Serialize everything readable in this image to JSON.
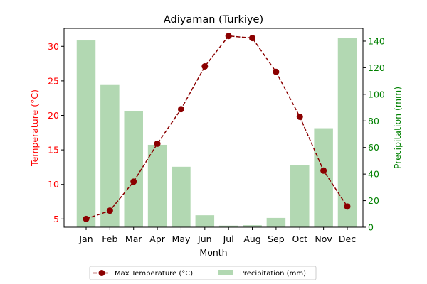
{
  "chart_data": {
    "type": "bar+line",
    "title": "Adiyaman (Turkiye)",
    "xlabel": "Month",
    "categories": [
      "Jan",
      "Feb",
      "Mar",
      "Apr",
      "May",
      "Jun",
      "Jul",
      "Aug",
      "Sep",
      "Oct",
      "Nov",
      "Dec"
    ],
    "temperature": {
      "name": "Max Temperature (°C)",
      "axis_label": "Temperature (°C)",
      "values": [
        5.0,
        6.2,
        10.4,
        15.9,
        20.9,
        27.1,
        31.5,
        31.2,
        26.3,
        19.8,
        12.0,
        6.8
      ],
      "ylim": [
        3.8,
        32.6
      ],
      "ticks": [
        5,
        10,
        15,
        20,
        25,
        30
      ],
      "color": "#8b0000",
      "axis_color": "#ff0000",
      "line_style": "dashed",
      "marker": "circle"
    },
    "precipitation": {
      "name": "Precipitation (mm)",
      "axis_label": "Precipitation (mm)",
      "values": [
        140.5,
        107.0,
        87.5,
        62.0,
        45.5,
        9.0,
        1.2,
        1.5,
        7.0,
        46.5,
        74.5,
        142.5
      ],
      "ylim": [
        0,
        149.6
      ],
      "ticks": [
        0,
        20,
        40,
        60,
        80,
        100,
        120,
        140
      ],
      "color": "#b2d8b2",
      "axis_color": "#008000"
    },
    "legend_position": "bottom-center",
    "grid": false
  }
}
